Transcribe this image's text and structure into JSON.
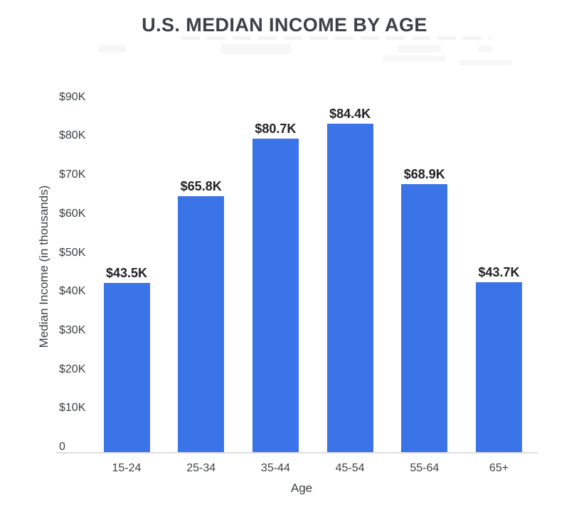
{
  "chart_data": {
    "type": "bar",
    "title": "U.S. MEDIAN INCOME BY AGE",
    "categories": [
      "15-24",
      "25-34",
      "35-44",
      "45-54",
      "55-64",
      "65+"
    ],
    "values": [
      43.5,
      65.8,
      80.7,
      84.4,
      68.9,
      43.7
    ],
    "value_labels": [
      "$43.5K",
      "$65.8K",
      "$80.7K",
      "$84.4K",
      "$68.9K",
      "$43.7K"
    ],
    "xlabel": "Age",
    "ylabel": "Median Income (in thousands)",
    "ylim": [
      0,
      90
    ],
    "y_ticks": [
      {
        "value": 90,
        "label": "$90K"
      },
      {
        "value": 80,
        "label": "$80K"
      },
      {
        "value": 70,
        "label": "$70K"
      },
      {
        "value": 60,
        "label": "$60K"
      },
      {
        "value": 50,
        "label": "$50K"
      },
      {
        "value": 40,
        "label": "$40K"
      },
      {
        "value": 30,
        "label": "$30K"
      },
      {
        "value": 20,
        "label": "$20K"
      },
      {
        "value": 10,
        "label": "$10K"
      },
      {
        "value": 0,
        "label": "0"
      }
    ],
    "grid": false,
    "legend": false,
    "bar_color": "#3b73e8"
  },
  "colors": {
    "bar": "#3b73e8",
    "title_text": "#3c4043",
    "axis_text": "#3c4043",
    "value_label_text": "#202124",
    "baseline": "#dedede",
    "background": "#ffffff"
  }
}
